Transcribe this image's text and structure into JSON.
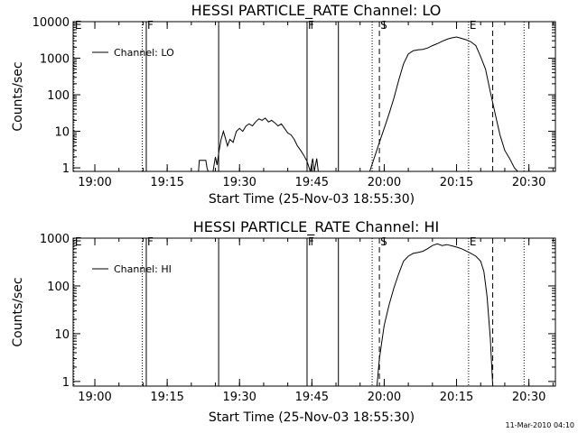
{
  "figure": {
    "timestamp": "11-Mar-2010 04:10",
    "colors": {
      "background": "#ffffff",
      "foreground": "#000000"
    }
  },
  "chart_data": [
    {
      "type": "line",
      "title": "HESSI PARTICLE_RATE Channel: LO",
      "xlabel": "Start Time (25-Nov-03 18:55:30)",
      "ylabel": "Counts/sec",
      "y_scale": "log",
      "xlim": [
        "18:55:30",
        "20:35:30"
      ],
      "ylim": [
        0.8,
        10000
      ],
      "x_ticks": [
        "19:00",
        "19:15",
        "19:30",
        "19:45",
        "20:00",
        "20:15",
        "20:30"
      ],
      "y_ticks": [
        "1",
        "10",
        "100",
        "1000",
        "10000"
      ],
      "legend": {
        "entries": [
          "Channel: LO"
        ],
        "placement": "top-left"
      },
      "markers": [
        {
          "time": "18:55:40",
          "label": "E",
          "style": "dotted"
        },
        {
          "time": "19:09:50",
          "label": "",
          "style": "dotted"
        },
        {
          "time": "19:10:40",
          "label": "F",
          "style": "solid"
        },
        {
          "time": "19:25:40",
          "label": "",
          "style": "solid"
        },
        {
          "time": "19:44:00",
          "label": "F",
          "style": "solid"
        },
        {
          "time": "19:50:30",
          "label": "",
          "style": "solid"
        },
        {
          "time": "19:57:30",
          "label": "",
          "style": "dotted"
        },
        {
          "time": "19:59:00",
          "label": "S",
          "style": "dashed"
        },
        {
          "time": "20:17:30",
          "label": "E",
          "style": "dotted"
        },
        {
          "time": "20:22:30",
          "label": "",
          "style": "dashed"
        },
        {
          "time": "20:29:00",
          "label": "",
          "style": "dotted"
        }
      ],
      "series": [
        {
          "name": "Channel: LO",
          "points": [
            [
              "19:21:30",
              0.8
            ],
            [
              "19:21:40",
              1.6
            ],
            [
              "19:23:00",
              1.6
            ],
            [
              "19:23:15",
              1.0
            ],
            [
              "19:23:30",
              0.8
            ],
            [
              "19:24:30",
              0.8
            ],
            [
              "19:25:00",
              2.0
            ],
            [
              "19:25:20",
              1.2
            ],
            [
              "19:25:40",
              2.5
            ],
            [
              "19:26:10",
              6
            ],
            [
              "19:26:40",
              10
            ],
            [
              "19:27:00",
              7
            ],
            [
              "19:27:30",
              4
            ],
            [
              "19:28:00",
              6
            ],
            [
              "19:28:40",
              5
            ],
            [
              "19:29:20",
              10
            ],
            [
              "19:30:00",
              12
            ],
            [
              "19:30:40",
              10
            ],
            [
              "19:31:20",
              14
            ],
            [
              "19:32:00",
              16
            ],
            [
              "19:32:40",
              14
            ],
            [
              "19:33:20",
              18
            ],
            [
              "19:34:00",
              22
            ],
            [
              "19:34:40",
              20
            ],
            [
              "19:35:20",
              23
            ],
            [
              "19:36:00",
              18
            ],
            [
              "19:36:40",
              20
            ],
            [
              "19:37:20",
              17
            ],
            [
              "19:38:00",
              14
            ],
            [
              "19:38:40",
              16
            ],
            [
              "19:39:20",
              12
            ],
            [
              "19:40:00",
              9
            ],
            [
              "19:40:40",
              8
            ],
            [
              "19:41:20",
              6
            ],
            [
              "19:42:00",
              4
            ],
            [
              "19:42:40",
              3
            ],
            [
              "19:43:20",
              2.2
            ],
            [
              "19:44:00",
              1.5
            ],
            [
              "19:44:40",
              0.8
            ],
            [
              "19:45:10",
              1.8
            ],
            [
              "19:45:30",
              0.8
            ],
            [
              "19:46:00",
              1.8
            ],
            [
              "19:46:20",
              0.8
            ],
            [
              "19:47:30",
              0.8
            ],
            [
              "19:57:00",
              0.8
            ],
            [
              "19:58:00",
              2
            ],
            [
              "19:59:00",
              5
            ],
            [
              "20:00:00",
              12
            ],
            [
              "20:01:00",
              30
            ],
            [
              "20:02:00",
              80
            ],
            [
              "20:03:00",
              250
            ],
            [
              "20:04:00",
              700
            ],
            [
              "20:05:00",
              1300
            ],
            [
              "20:06:00",
              1600
            ],
            [
              "20:07:00",
              1700
            ],
            [
              "20:08:00",
              1750
            ],
            [
              "20:09:00",
              1900
            ],
            [
              "20:10:00",
              2200
            ],
            [
              "20:11:00",
              2500
            ],
            [
              "20:12:00",
              2900
            ],
            [
              "20:13:00",
              3300
            ],
            [
              "20:14:00",
              3600
            ],
            [
              "20:15:00",
              3800
            ],
            [
              "20:16:00",
              3500
            ],
            [
              "20:17:00",
              3200
            ],
            [
              "20:18:00",
              2800
            ],
            [
              "20:19:00",
              2200
            ],
            [
              "20:20:00",
              1100
            ],
            [
              "20:21:00",
              500
            ],
            [
              "20:22:00",
              120
            ],
            [
              "20:23:00",
              30
            ],
            [
              "20:24:00",
              8
            ],
            [
              "20:25:00",
              3
            ],
            [
              "20:26:00",
              1.8
            ],
            [
              "20:27:00",
              1.0
            ],
            [
              "20:27:40",
              0.8
            ]
          ]
        }
      ]
    },
    {
      "type": "line",
      "title": "HESSI PARTICLE_RATE Channel: HI",
      "xlabel": "Start Time (25-Nov-03 18:55:30)",
      "ylabel": "Counts/sec",
      "y_scale": "log",
      "xlim": [
        "18:55:30",
        "20:35:30"
      ],
      "ylim": [
        0.8,
        1000
      ],
      "x_ticks": [
        "19:00",
        "19:15",
        "19:30",
        "19:45",
        "20:00",
        "20:15",
        "20:30"
      ],
      "y_ticks": [
        "1",
        "10",
        "100",
        "1000"
      ],
      "legend": {
        "entries": [
          "Channel: HI"
        ],
        "placement": "top-left"
      },
      "markers": [
        {
          "time": "18:55:40",
          "label": "E",
          "style": "dotted"
        },
        {
          "time": "19:09:50",
          "label": "",
          "style": "dotted"
        },
        {
          "time": "19:10:40",
          "label": "F",
          "style": "solid"
        },
        {
          "time": "19:25:40",
          "label": "",
          "style": "solid"
        },
        {
          "time": "19:44:00",
          "label": "F",
          "style": "solid"
        },
        {
          "time": "19:50:30",
          "label": "",
          "style": "solid"
        },
        {
          "time": "19:57:30",
          "label": "",
          "style": "dotted"
        },
        {
          "time": "19:59:00",
          "label": "S",
          "style": "dashed"
        },
        {
          "time": "20:17:30",
          "label": "E",
          "style": "dotted"
        },
        {
          "time": "20:22:30",
          "label": "",
          "style": "dashed"
        },
        {
          "time": "20:29:00",
          "label": "",
          "style": "dotted"
        }
      ],
      "series": [
        {
          "name": "Channel: HI",
          "points": [
            [
              "19:58:30",
              0.8
            ],
            [
              "19:59:00",
              3
            ],
            [
              "20:00:00",
              15
            ],
            [
              "20:01:00",
              40
            ],
            [
              "20:02:00",
              90
            ],
            [
              "20:03:00",
              180
            ],
            [
              "20:04:00",
              330
            ],
            [
              "20:05:00",
              420
            ],
            [
              "20:06:00",
              480
            ],
            [
              "20:07:00",
              500
            ],
            [
              "20:08:00",
              530
            ],
            [
              "20:09:00",
              600
            ],
            [
              "20:10:00",
              700
            ],
            [
              "20:11:00",
              760
            ],
            [
              "20:12:00",
              700
            ],
            [
              "20:13:00",
              730
            ],
            [
              "20:14:00",
              690
            ],
            [
              "20:15:00",
              650
            ],
            [
              "20:16:00",
              600
            ],
            [
              "20:17:00",
              540
            ],
            [
              "20:18:00",
              480
            ],
            [
              "20:19:00",
              420
            ],
            [
              "20:20:00",
              330
            ],
            [
              "20:20:40",
              200
            ],
            [
              "20:21:20",
              60
            ],
            [
              "20:22:00",
              8
            ],
            [
              "20:22:30",
              0.8
            ]
          ]
        }
      ]
    }
  ]
}
